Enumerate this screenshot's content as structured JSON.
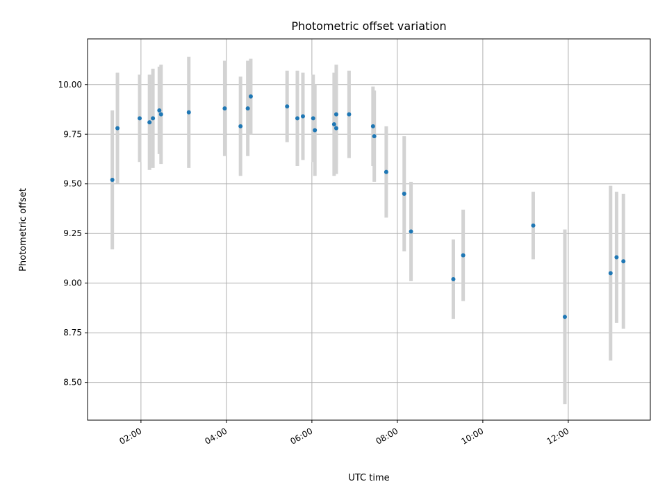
{
  "chart_data": {
    "type": "scatter",
    "title": "Photometric offset variation",
    "xlabel": "UTC time",
    "ylabel": "Photometric offset",
    "x_unit": "hours_utc",
    "xlim": [
      0.75,
      13.92
    ],
    "ylim": [
      8.31,
      10.23
    ],
    "x_ticks": [
      {
        "value": 2,
        "label": "02:00"
      },
      {
        "value": 4,
        "label": "04:00"
      },
      {
        "value": 6,
        "label": "06:00"
      },
      {
        "value": 8,
        "label": "08:00"
      },
      {
        "value": 10,
        "label": "10:00"
      },
      {
        "value": 12,
        "label": "12:00"
      }
    ],
    "y_ticks": [
      {
        "value": 8.5,
        "label": "8.50"
      },
      {
        "value": 8.75,
        "label": "8.75"
      },
      {
        "value": 9.0,
        "label": "9.00"
      },
      {
        "value": 9.25,
        "label": "9.25"
      },
      {
        "value": 9.5,
        "label": "9.50"
      },
      {
        "value": 9.75,
        "label": "9.75"
      },
      {
        "value": 10.0,
        "label": "10.00"
      }
    ],
    "grid": true,
    "point_color": "#1f77b4",
    "errorbar_color": "#d3d3d3",
    "points": [
      {
        "x": 1.33,
        "y": 9.52,
        "err": 0.35
      },
      {
        "x": 1.45,
        "y": 9.78,
        "err": 0.28
      },
      {
        "x": 1.97,
        "y": 9.83,
        "err": 0.22
      },
      {
        "x": 2.2,
        "y": 9.81,
        "err": 0.24
      },
      {
        "x": 2.28,
        "y": 9.83,
        "err": 0.25
      },
      {
        "x": 2.43,
        "y": 9.87,
        "err": 0.22
      },
      {
        "x": 2.47,
        "y": 9.85,
        "err": 0.25
      },
      {
        "x": 3.12,
        "y": 9.86,
        "err": 0.28
      },
      {
        "x": 3.96,
        "y": 9.88,
        "err": 0.24
      },
      {
        "x": 4.33,
        "y": 9.79,
        "err": 0.25
      },
      {
        "x": 4.5,
        "y": 9.88,
        "err": 0.24
      },
      {
        "x": 4.57,
        "y": 9.94,
        "err": 0.19
      },
      {
        "x": 5.42,
        "y": 9.89,
        "err": 0.18
      },
      {
        "x": 5.66,
        "y": 9.83,
        "err": 0.24
      },
      {
        "x": 5.79,
        "y": 9.84,
        "err": 0.22
      },
      {
        "x": 6.03,
        "y": 9.83,
        "err": 0.22
      },
      {
        "x": 6.07,
        "y": 9.77,
        "err": 0.23
      },
      {
        "x": 6.52,
        "y": 9.8,
        "err": 0.26
      },
      {
        "x": 6.57,
        "y": 9.85,
        "err": 0.25
      },
      {
        "x": 6.57,
        "y": 9.78,
        "err": 0.23
      },
      {
        "x": 6.87,
        "y": 9.85,
        "err": 0.22
      },
      {
        "x": 7.43,
        "y": 9.79,
        "err": 0.2
      },
      {
        "x": 7.46,
        "y": 9.74,
        "err": 0.23
      },
      {
        "x": 7.74,
        "y": 9.56,
        "err": 0.23
      },
      {
        "x": 8.16,
        "y": 9.45,
        "err": 0.29
      },
      {
        "x": 8.32,
        "y": 9.26,
        "err": 0.25
      },
      {
        "x": 9.31,
        "y": 9.02,
        "err": 0.2
      },
      {
        "x": 9.54,
        "y": 9.14,
        "err": 0.23
      },
      {
        "x": 11.18,
        "y": 9.29,
        "err": 0.17
      },
      {
        "x": 11.92,
        "y": 8.83,
        "err": 0.44
      },
      {
        "x": 12.99,
        "y": 9.05,
        "err": 0.44
      },
      {
        "x": 13.13,
        "y": 9.13,
        "err": 0.33
      },
      {
        "x": 13.29,
        "y": 9.11,
        "err": 0.34
      }
    ]
  }
}
